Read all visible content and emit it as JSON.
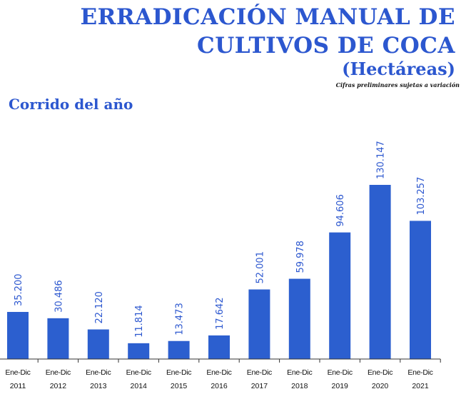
{
  "header": {
    "title_line1": "ERRADICACIÓN MANUAL DE",
    "title_line2": "CULTIVOS DE COCA",
    "unit": "(Hectáreas)",
    "note": "Cifras preliminares sujetas a variación",
    "subtitle": "Corrido del año"
  },
  "chart_data": {
    "type": "bar",
    "categories": [
      [
        "Ene-Dic",
        "2011"
      ],
      [
        "Ene-Dic",
        "2012"
      ],
      [
        "Ene-Dic",
        "2013"
      ],
      [
        "Ene-Dic",
        "2014"
      ],
      [
        "Ene-Dic",
        "2015"
      ],
      [
        "Ene-Dic",
        "2016"
      ],
      [
        "Ene-Dic",
        "2017"
      ],
      [
        "Ene-Dic",
        "2018"
      ],
      [
        "Ene-Dic",
        "2019"
      ],
      [
        "Ene-Dic",
        "2020"
      ],
      [
        "Ene-Dic",
        "2021"
      ]
    ],
    "values": [
      35200,
      30486,
      22120,
      11814,
      13473,
      17642,
      52001,
      59978,
      94606,
      130147,
      103257
    ],
    "data_labels": [
      "35.200",
      "30.486",
      "22.120",
      "11.814",
      "13.473",
      "17.642",
      "52.001",
      "59.978",
      "94.606",
      "130.147",
      "103.257"
    ],
    "ylim": [
      0,
      130147
    ],
    "grid": false,
    "legend": "none",
    "colors": {
      "bar": "#2c5fcf",
      "label": "#2c57cf",
      "axis": "#333333"
    }
  }
}
